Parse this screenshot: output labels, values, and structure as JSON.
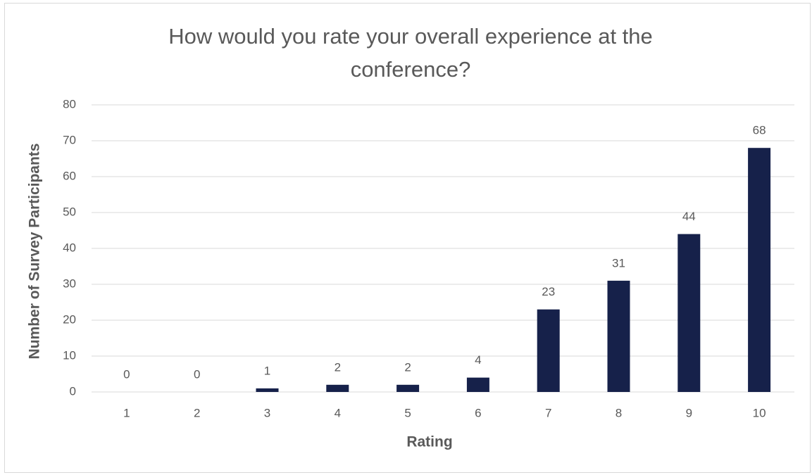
{
  "chart_data": {
    "type": "bar",
    "title": "How would you rate your overall experience at the conference?",
    "x_label": "Rating",
    "y_label": "Number of Survey Participants",
    "categories": [
      "1",
      "2",
      "3",
      "4",
      "5",
      "6",
      "7",
      "8",
      "9",
      "10"
    ],
    "values": [
      0,
      0,
      1,
      2,
      2,
      4,
      23,
      31,
      44,
      68
    ],
    "color": "#16214a",
    "ylim": [
      0,
      80
    ],
    "yticks": [
      0,
      10,
      20,
      30,
      40,
      50,
      60,
      70,
      80
    ],
    "grid": true,
    "data_labels": true
  }
}
